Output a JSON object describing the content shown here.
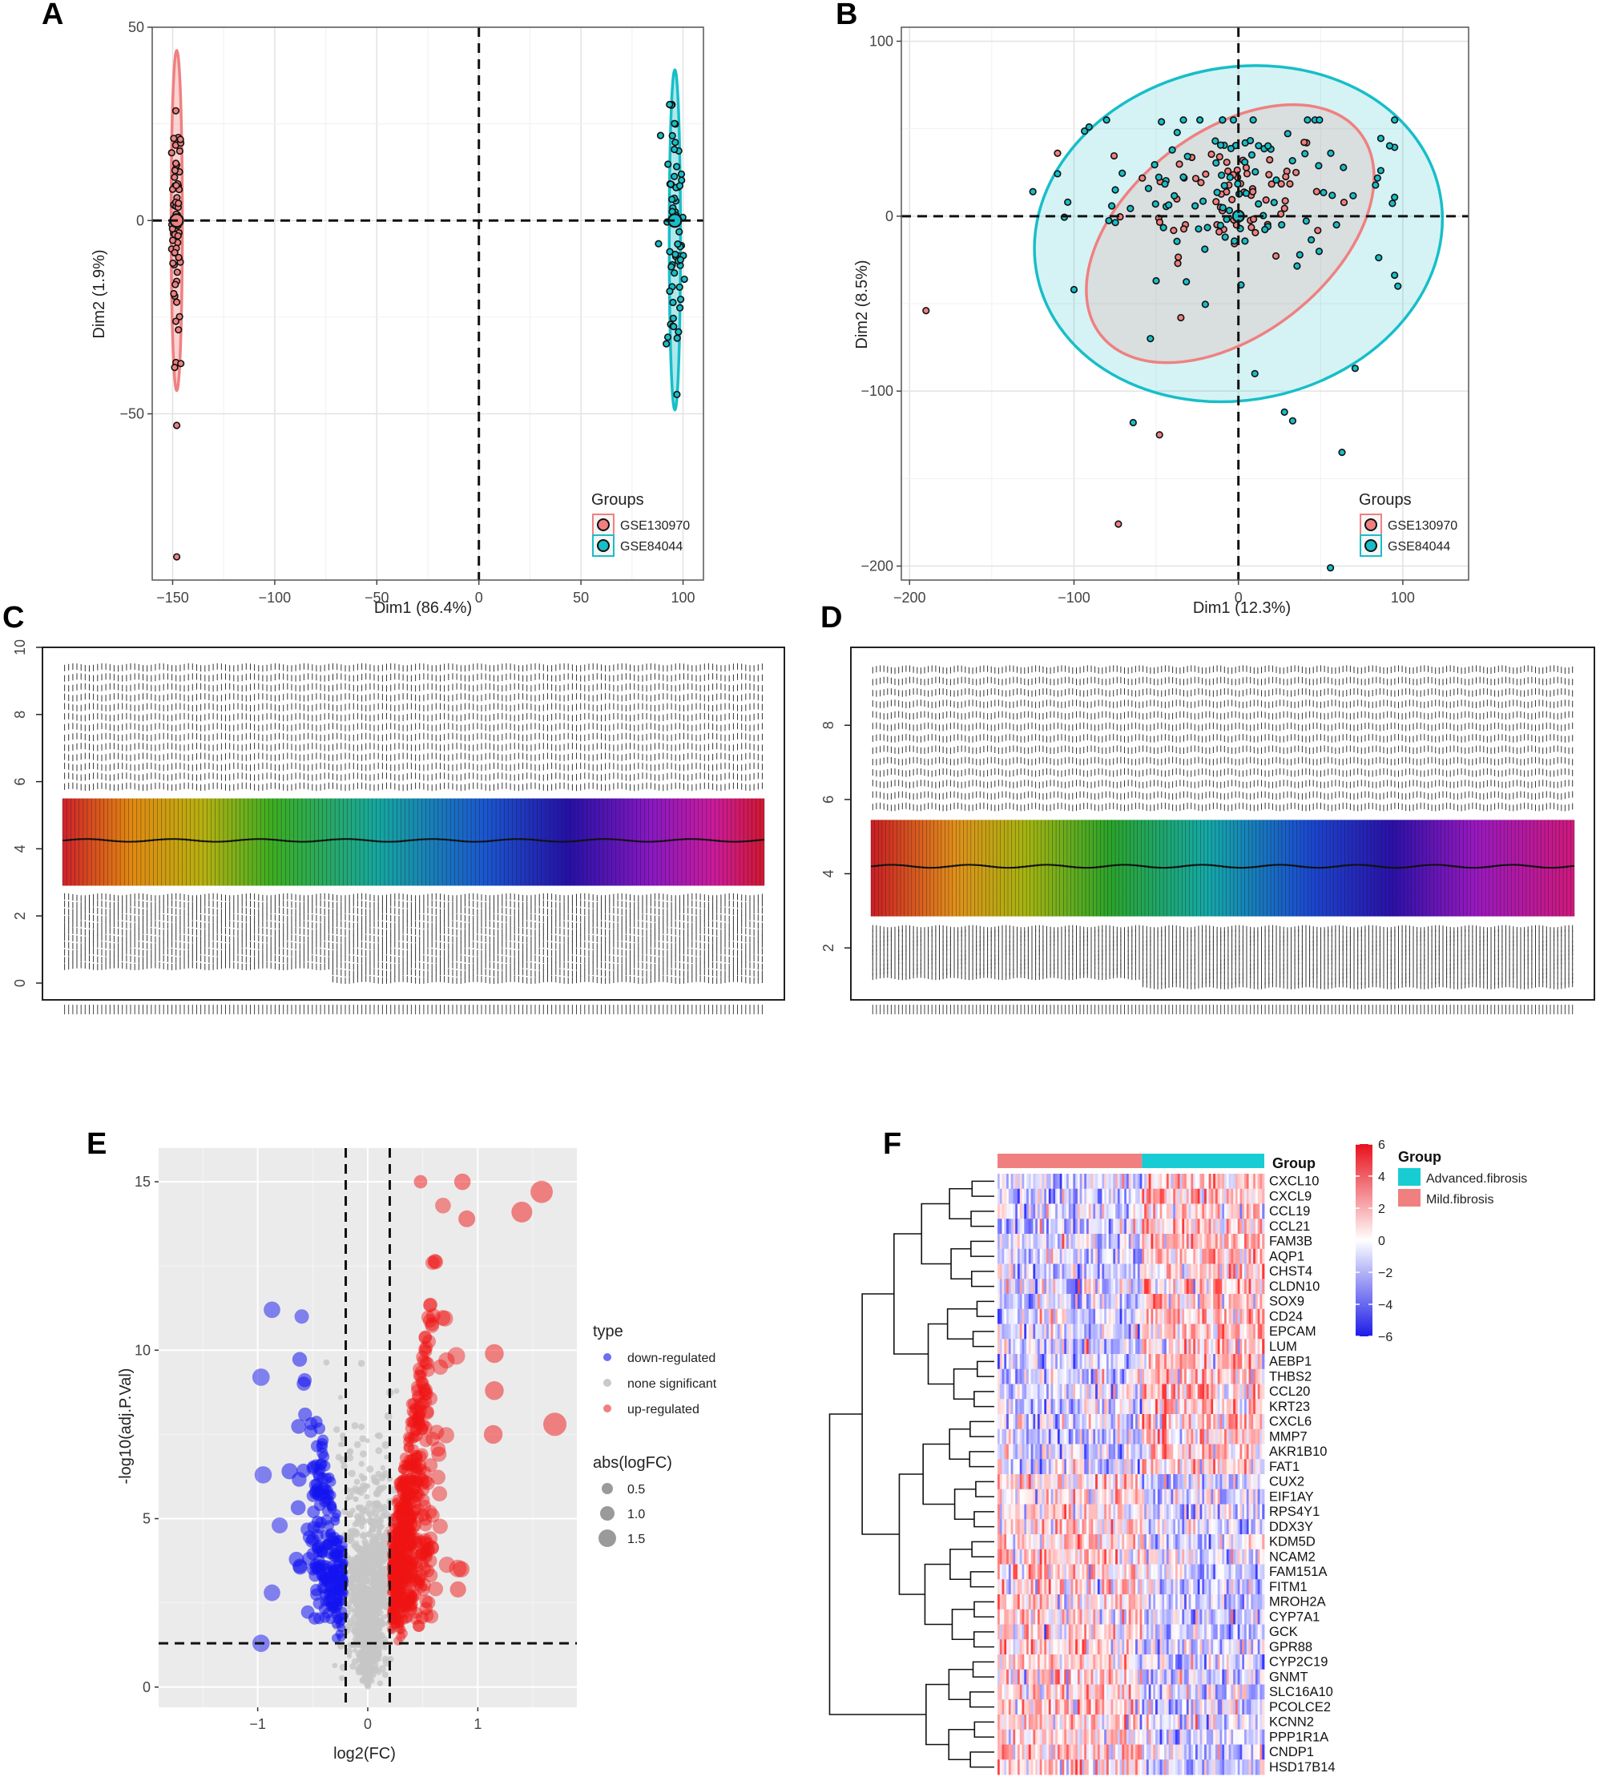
{
  "panels": {
    "A": {
      "label": "A",
      "chart_data": {
        "type": "scatter",
        "xlabel": "Dim1 (86.4%)",
        "ylabel": "Dim2 (1.9%)",
        "xlim": [
          -160,
          110
        ],
        "ylim": [
          -93,
          50
        ],
        "xticks": [
          -150,
          -100,
          -50,
          0,
          50,
          100
        ],
        "yticks": [
          -50,
          0,
          50
        ],
        "grid": true,
        "legend_title": "Groups",
        "legend_position": "bottom-right",
        "series": [
          {
            "name": "GSE130970",
            "color": "#f08080",
            "center": [
              -148,
              0
            ],
            "spread_x": 1.2,
            "spread_y": 14,
            "ellipse_half_y": 44,
            "points": [
              [
                -148,
                -53
              ],
              [
                -148,
                -87
              ],
              [
                -149,
                -38
              ],
              [
                -146,
                -37
              ]
            ]
          },
          {
            "name": "GSE84044",
            "color": "#17bec8",
            "center": [
              96,
              -5
            ],
            "spread_x": 2.2,
            "spread_y": 18,
            "ellipse_half_y": 44,
            "points": [
              [
                88,
                -6
              ],
              [
                89,
                22
              ],
              [
                97,
                -45
              ]
            ]
          }
        ]
      }
    },
    "B": {
      "label": "B",
      "chart_data": {
        "type": "scatter",
        "xlabel": "Dim1 (12.3%)",
        "ylabel": "Dim2 (8.5%)",
        "xlim": [
          -205,
          140
        ],
        "ylim": [
          -208,
          108
        ],
        "xticks": [
          -200,
          -100,
          0,
          100
        ],
        "yticks": [
          -200,
          -100,
          0,
          100
        ],
        "grid": true,
        "legend_title": "Groups",
        "legend_position": "bottom-right",
        "series": [
          {
            "name": "GSE130970",
            "color": "#f08080",
            "center": [
              -5,
              15
            ],
            "spread": 28,
            "points": [
              [
                -190,
                -54
              ],
              [
                -73,
                -176
              ],
              [
                -48,
                -125
              ],
              [
                -35,
                -58
              ]
            ]
          },
          {
            "name": "GSE84044",
            "color": "#17bec8",
            "center": [
              0,
              18
            ],
            "spread": 40,
            "points": [
              [
                -125,
                14
              ],
              [
                -100,
                -42
              ],
              [
                -64,
                -118
              ],
              [
                33,
                -117
              ],
              [
                28,
                -112
              ],
              [
                63,
                -135
              ],
              [
                56,
                -201
              ],
              [
                71,
                -87
              ],
              [
                97,
                -40
              ],
              [
                10,
                -90
              ]
            ]
          }
        ]
      }
    },
    "C": {
      "label": "C",
      "chart_data": {
        "type": "box",
        "ylim": [
          -0.5,
          10
        ],
        "yticks": [
          0,
          2,
          4,
          6,
          8,
          10
        ],
        "n_samples": 170,
        "median": 4.25,
        "q1": 2.9,
        "q3": 5.5,
        "upper_outliers_max": 9.4,
        "lower_outliers_min": 0.1
      }
    },
    "D": {
      "label": "D",
      "chart_data": {
        "type": "box",
        "ylim": [
          0.6,
          10.1
        ],
        "yticks": [
          2,
          4,
          6,
          8
        ],
        "n_samples": 190,
        "median": 4.2,
        "q1": 2.85,
        "q3": 5.45,
        "upper_outliers_max": 9.5,
        "lower_outliers_min": 1.0
      }
    },
    "E": {
      "label": "E",
      "chart_data": {
        "type": "scatter",
        "xlabel": "log2(FC)",
        "ylabel": "-log10(adj.P.Val)",
        "xlim": [
          -1.9,
          1.9
        ],
        "ylim": [
          -0.6,
          16
        ],
        "xticks": [
          -1,
          0,
          1
        ],
        "yticks": [
          0,
          5,
          10,
          15
        ],
        "cutoff_x": [
          -0.2,
          0.2
        ],
        "cutoff_y": 1.3,
        "legend_type_title": "type",
        "legend_size_title": "abs(logFC)",
        "type_entries": [
          {
            "label": "down-regulated",
            "color": "#4a4af0"
          },
          {
            "label": "none significant",
            "color": "#c9c9c9"
          },
          {
            "label": "up-regulated",
            "color": "#f08080"
          }
        ],
        "size_entries": [
          "0.5",
          "1.0",
          "1.5"
        ],
        "highlight_points": [
          [
            1.58,
            14.7
          ],
          [
            1.4,
            14.1
          ],
          [
            0.86,
            15.0
          ],
          [
            0.48,
            15.0
          ],
          [
            0.9,
            13.9
          ],
          [
            1.7,
            7.8
          ],
          [
            1.15,
            9.9
          ],
          [
            1.15,
            8.8
          ],
          [
            1.14,
            7.5
          ],
          [
            0.85,
            3.5
          ],
          [
            0.82,
            2.9
          ],
          [
            -0.97,
            9.2
          ],
          [
            -0.95,
            6.3
          ],
          [
            -0.87,
            11.2
          ],
          [
            -0.6,
            11.0
          ],
          [
            -0.97,
            1.3
          ],
          [
            -0.87,
            2.8
          ],
          [
            -0.8,
            4.8
          ]
        ]
      }
    },
    "F": {
      "label": "F",
      "chart_data": {
        "type": "heatmap",
        "group_label": "Group",
        "legend_title": "Group",
        "group_entries": [
          {
            "label": "Advanced.fibrosis",
            "color": "#17cdd3"
          },
          {
            "label": "Mild.fibrosis",
            "color": "#f08080"
          }
        ],
        "colorbar_ticks": [
          "6",
          "4",
          "2",
          "0",
          "−2",
          "−4",
          "−6"
        ],
        "colorbar_range": [
          -6,
          6
        ],
        "n_mild": 65,
        "n_advanced": 55,
        "genes": [
          "CXCL10",
          "CXCL9",
          "CCL19",
          "CCL21",
          "FAM3B",
          "AQP1",
          "CHST4",
          "CLDN10",
          "SOX9",
          "CD24",
          "EPCAM",
          "LUM",
          "AEBP1",
          "THBS2",
          "CCL20",
          "KRT23",
          "CXCL6",
          "MMP7",
          "AKR1B10",
          "FAT1",
          "CUX2",
          "EIF1AY",
          "RPS4Y1",
          "DDX3Y",
          "KDM5D",
          "NCAM2",
          "FAM151A",
          "FITM1",
          "MROH2A",
          "CYP7A1",
          "GCK",
          "GPR88",
          "CYP2C19",
          "GNMT",
          "SLC16A10",
          "PCOLCE2",
          "KCNN2",
          "PPP1R1A",
          "CNDP1",
          "HSD17B14"
        ]
      }
    }
  }
}
